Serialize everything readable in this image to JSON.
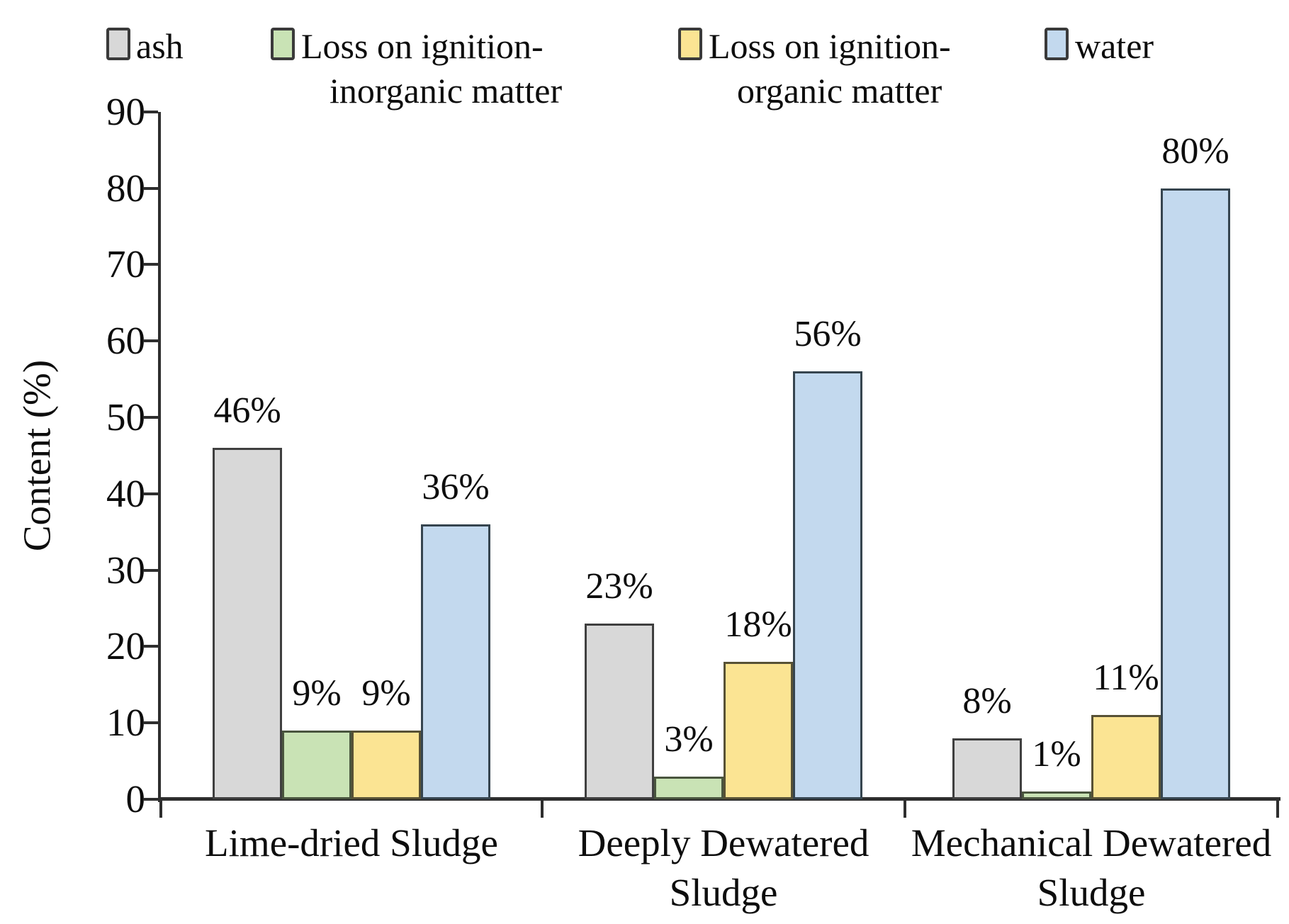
{
  "chart_data": {
    "type": "bar",
    "title": "",
    "xlabel": "",
    "ylabel": "Content (%)",
    "ylim": [
      0,
      90
    ],
    "yticks": [
      0,
      10,
      20,
      30,
      40,
      50,
      60,
      70,
      80,
      90
    ],
    "grid": false,
    "legend_position": "top",
    "value_suffix": "%",
    "categories": [
      "Lime-dried Sludge",
      "Deeply Dewatered Sludge",
      "Mechanical Dewatered Sludge"
    ],
    "category_label_lines": [
      [
        "Lime-dried Sludge"
      ],
      [
        "Deeply Dewatered",
        "Sludge"
      ],
      [
        "Mechanical Dewatered",
        "Sludge"
      ]
    ],
    "series": [
      {
        "name": "ash",
        "legend_lines": [
          "ash"
        ],
        "fill": "#d8d8d8",
        "border": "#3f3f3f",
        "values": [
          46,
          23,
          8
        ]
      },
      {
        "name": "Loss on ignition-inorganic matter",
        "legend_lines": [
          "Loss on ignition-",
          "inorganic matter"
        ],
        "fill": "#c9e3b5",
        "border": "#49553e",
        "values": [
          9,
          3,
          1
        ]
      },
      {
        "name": "Loss on ignition-organic matter",
        "legend_lines": [
          "Loss on ignition-",
          "organic matter"
        ],
        "fill": "#fbe493",
        "border": "#575135",
        "values": [
          9,
          18,
          11
        ]
      },
      {
        "name": "water",
        "legend_lines": [
          "water"
        ],
        "fill": "#c3d9ee",
        "border": "#36454f",
        "values": [
          36,
          56,
          80
        ]
      }
    ],
    "data_labels": [
      [
        "46%",
        "23%",
        "8%"
      ],
      [
        "9%",
        "3%",
        "1%"
      ],
      [
        "9%",
        "18%",
        "11%"
      ],
      [
        "36%",
        "56%",
        "80%"
      ]
    ],
    "text_color": "#0d0d0d",
    "axis_color": "#2e2e2e",
    "background": "#ffffff"
  }
}
